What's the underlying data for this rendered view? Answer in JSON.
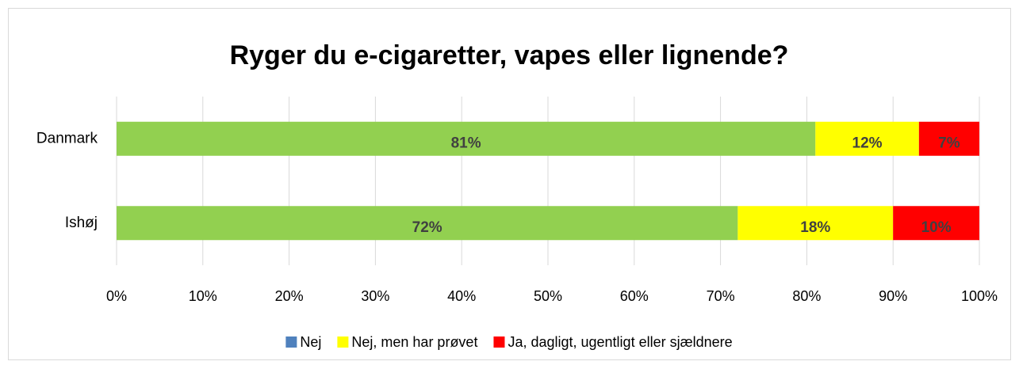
{
  "chart_data": {
    "type": "stacked_bar_horizontal",
    "title": "Ryger du e-cigaretter, vapes eller lignende?",
    "categories": [
      "Danmark",
      "Ishøj"
    ],
    "series": [
      {
        "name": "Nej",
        "color": "#92d050",
        "legend_color": "#4f81bd",
        "values": [
          81,
          72
        ],
        "value_labels": [
          "81%",
          "72%"
        ]
      },
      {
        "name": "Nej, men har prøvet",
        "color": "#ffff00",
        "values": [
          12,
          18
        ],
        "value_labels": [
          "12%",
          "18%"
        ]
      },
      {
        "name": "Ja, dagligt, ugentligt eller sjældnere",
        "color": "#ff0000",
        "values": [
          7,
          10
        ],
        "value_labels": [
          "7%",
          "10%"
        ]
      }
    ],
    "xlim": [
      0,
      100
    ],
    "xticks": [
      {
        "value": 0,
        "label": "0%"
      },
      {
        "value": 10,
        "label": "10%"
      },
      {
        "value": 20,
        "label": "20%"
      },
      {
        "value": 30,
        "label": "30%"
      },
      {
        "value": 40,
        "label": "40%"
      },
      {
        "value": 50,
        "label": "50%"
      },
      {
        "value": 60,
        "label": "60%"
      },
      {
        "value": 70,
        "label": "70%"
      },
      {
        "value": 80,
        "label": "80%"
      },
      {
        "value": 90,
        "label": "90%"
      },
      {
        "value": 100,
        "label": "100%"
      }
    ],
    "grid": true,
    "legend": "bottom"
  }
}
